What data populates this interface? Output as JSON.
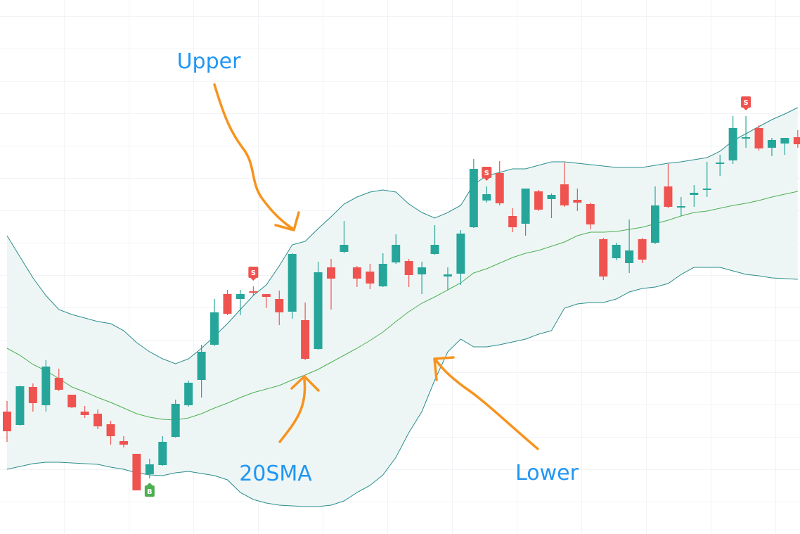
{
  "chart_data": {
    "type": "candlestick",
    "ylim": [
      0,
      759
    ],
    "up_color": "#26a69a",
    "down_color": "#ef5350",
    "band_line_color": "#2a8c8c",
    "band_fill_color": "#eef6f5",
    "sma_color": "#4caf50",
    "open": [
      174,
      155,
      209,
      183,
      222,
      198,
      174,
      171,
      156,
      132,
      114,
      85,
      98,
      138,
      183,
      219,
      269,
      341,
      334,
      345,
      341,
      334,
      316,
      304,
      263,
      379,
      401,
      379,
      373,
      352,
      386,
      388,
      369,
      398,
      366,
      370,
      436,
      474,
      513,
      452,
      441,
      487,
      476,
      497,
      475,
      469,
      419,
      392,
      385,
      419,
      414,
      494,
      464,
      482,
      489,
      526,
      531,
      562,
      577,
      549,
      555,
      564
    ],
    "high": [
      189,
      211,
      214,
      247,
      235,
      198,
      182,
      177,
      161,
      139,
      114,
      107,
      139,
      191,
      218,
      269,
      334,
      347,
      347,
      352,
      341,
      346,
      399,
      329,
      387,
      391,
      445,
      381,
      384,
      399,
      426,
      391,
      387,
      439,
      379,
      432,
      533,
      494,
      530,
      463,
      491,
      489,
      484,
      528,
      491,
      471,
      421,
      414,
      447,
      421,
      494,
      526,
      479,
      496,
      529,
      539,
      594,
      594,
      581,
      563,
      563,
      574
    ],
    "low": [
      131,
      154,
      174,
      174,
      203,
      179,
      165,
      149,
      127,
      123,
      62,
      79,
      97,
      137,
      181,
      194,
      267,
      311,
      311,
      339,
      321,
      297,
      306,
      247,
      262,
      319,
      399,
      351,
      348,
      351,
      384,
      351,
      341,
      397,
      347,
      354,
      435,
      471,
      467,
      429,
      424,
      459,
      449,
      465,
      459,
      433,
      361,
      389,
      371,
      385,
      412,
      463,
      452,
      465,
      479,
      509,
      526,
      549,
      545,
      537,
      539,
      549
    ],
    "close": [
      146,
      210,
      186,
      238,
      205,
      180,
      169,
      153,
      139,
      127,
      62,
      99,
      131,
      185,
      215,
      259,
      315,
      313,
      341,
      343,
      337,
      315,
      398,
      249,
      372,
      363,
      411,
      363,
      356,
      384,
      411,
      368,
      379,
      411,
      369,
      427,
      519,
      483,
      470,
      436,
      491,
      461,
      482,
      467,
      471,
      440,
      366,
      411,
      403,
      390,
      467,
      465,
      466,
      485,
      491,
      528,
      577,
      564,
      548,
      560,
      563,
      554
    ],
    "upper": [
      424,
      394,
      364,
      339,
      319,
      312,
      307,
      302,
      299,
      289,
      272,
      259,
      249,
      242,
      249,
      264,
      281,
      299,
      319,
      339,
      354,
      381,
      411,
      416,
      434,
      451,
      469,
      479,
      486,
      489,
      486,
      469,
      457,
      449,
      457,
      467,
      497,
      509,
      514,
      519,
      519,
      524,
      529,
      529,
      527,
      525,
      523,
      521,
      521,
      521,
      524,
      527,
      529,
      532,
      535,
      544,
      559,
      569,
      579,
      589,
      597,
      606
    ],
    "middle": [
      264,
      254,
      241,
      232,
      221,
      209,
      202,
      194,
      187,
      179,
      171,
      166,
      163,
      162,
      165,
      171,
      179,
      186,
      194,
      201,
      206,
      211,
      219,
      226,
      234,
      244,
      254,
      264,
      275,
      287,
      302,
      316,
      328,
      337,
      347,
      357,
      371,
      377,
      385,
      393,
      399,
      403,
      409,
      415,
      424,
      429,
      429,
      430,
      433,
      436,
      441,
      446,
      452,
      457,
      459,
      463,
      467,
      470,
      474,
      479,
      483,
      487
    ],
    "lower": [
      92,
      96,
      100,
      102,
      102,
      101,
      100,
      99,
      95,
      92,
      87,
      84,
      83,
      87,
      89,
      86,
      83,
      77,
      59,
      49,
      44,
      41,
      40,
      39,
      39,
      41,
      47,
      59,
      69,
      84,
      109,
      144,
      174,
      219,
      259,
      277,
      266,
      266,
      269,
      273,
      277,
      284,
      289,
      321,
      327,
      329,
      329,
      334,
      344,
      349,
      351,
      356,
      369,
      379,
      379,
      379,
      374,
      369,
      367,
      364,
      363,
      362
    ],
    "signals": [
      {
        "index": 11,
        "label": "B",
        "color": "#4caf50"
      },
      {
        "index": 19,
        "label": "S",
        "color": "#ef5350"
      },
      {
        "index": 37,
        "label": "S",
        "color": "#ef5350"
      },
      {
        "index": 57,
        "label": "S",
        "color": "#ef5350"
      }
    ],
    "annotations": [
      {
        "text": "Upper"
      },
      {
        "text": "20SMA"
      },
      {
        "text": "Lower"
      }
    ]
  }
}
